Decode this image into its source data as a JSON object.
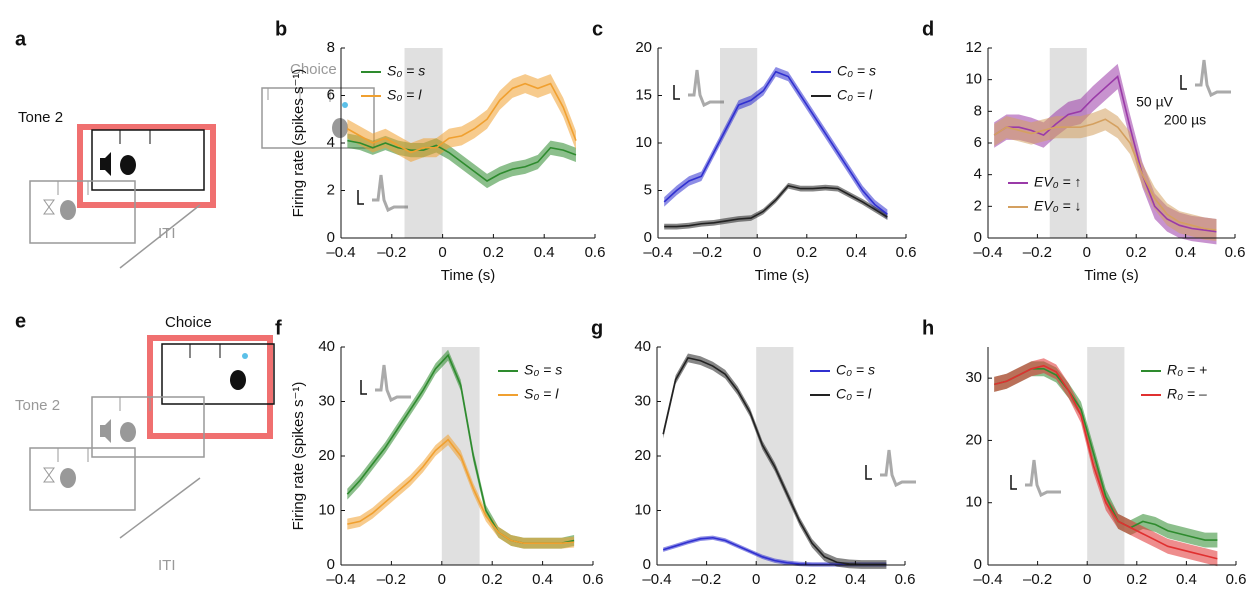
{
  "diagrams": [
    {
      "panel": "a",
      "labels": [
        "Tone 2",
        "Choice",
        "ITI"
      ]
    },
    {
      "panel": "e",
      "labels": [
        "Choice",
        "Tone 2",
        "ITI"
      ]
    }
  ],
  "chart_data": [
    {
      "type": "line",
      "panel": "b",
      "xlabel": "Time (s)",
      "ylabel": "Firing rate (spikes s⁻¹)",
      "xlim": [
        -0.4,
        0.6
      ],
      "xticks": [
        {
          "value": -0.4,
          "label": "–0.4"
        },
        {
          "value": -0.2,
          "label": "–0.2"
        },
        0,
        0.2,
        0.4,
        0.6
      ],
      "ylim": [
        0,
        8
      ],
      "yticks": [
        0,
        2,
        4,
        6,
        8
      ],
      "highlight": [
        -0.15,
        0
      ],
      "legend": "upper left",
      "x": [
        -0.375,
        -0.325,
        -0.275,
        -0.225,
        -0.175,
        -0.125,
        -0.075,
        -0.025,
        0.025,
        0.075,
        0.125,
        0.175,
        0.225,
        0.275,
        0.325,
        0.375,
        0.425,
        0.475,
        0.525
      ],
      "series": [
        {
          "name": "S₀ = s",
          "color": "#2e8b2e",
          "values": [
            4.1,
            4.0,
            3.8,
            4.0,
            3.8,
            3.7,
            3.7,
            3.9,
            3.6,
            3.2,
            2.8,
            2.4,
            2.7,
            2.9,
            3.0,
            3.2,
            3.8,
            3.7,
            3.5
          ],
          "errors": [
            0.3,
            0.3,
            0.3,
            0.3,
            0.3,
            0.3,
            0.3,
            0.3,
            0.3,
            0.3,
            0.3,
            0.3,
            0.3,
            0.3,
            0.3,
            0.3,
            0.3,
            0.3,
            0.3
          ]
        },
        {
          "name": "S₀ = l",
          "color": "#f0a030",
          "values": [
            4.6,
            4.3,
            4.0,
            4.2,
            3.9,
            3.6,
            3.8,
            3.8,
            4.2,
            4.3,
            4.6,
            5.0,
            5.8,
            6.3,
            6.5,
            6.3,
            6.5,
            5.5,
            4.1
          ],
          "errors": [
            0.4,
            0.4,
            0.4,
            0.4,
            0.4,
            0.4,
            0.4,
            0.4,
            0.4,
            0.4,
            0.4,
            0.4,
            0.4,
            0.4,
            0.4,
            0.4,
            0.4,
            0.4,
            0.4
          ]
        }
      ]
    },
    {
      "type": "line",
      "panel": "c",
      "xlabel": "Time (s)",
      "xlim": [
        -0.4,
        0.6
      ],
      "xticks": [
        {
          "value": -0.4,
          "label": "–0.4"
        },
        {
          "value": -0.2,
          "label": "–0.2"
        },
        0,
        0.2,
        0.4,
        0.6
      ],
      "ylim": [
        0,
        20
      ],
      "yticks": [
        0,
        5,
        10,
        15,
        20
      ],
      "highlight": [
        -0.15,
        0
      ],
      "legend": "upper right",
      "x": [
        -0.375,
        -0.325,
        -0.275,
        -0.225,
        -0.175,
        -0.125,
        -0.075,
        -0.025,
        0.025,
        0.075,
        0.125,
        0.175,
        0.225,
        0.275,
        0.325,
        0.375,
        0.425,
        0.475,
        0.525
      ],
      "series": [
        {
          "name": "C₀ = s",
          "color": "#3030d0",
          "values": [
            3.8,
            5.0,
            6.0,
            6.5,
            9.0,
            11.5,
            14.0,
            14.5,
            15.5,
            17.5,
            17.0,
            15.0,
            13.0,
            11.0,
            9.0,
            7.0,
            5.0,
            3.5,
            2.5
          ],
          "errors": [
            0.5,
            0.5,
            0.5,
            0.5,
            0.5,
            0.5,
            0.5,
            0.5,
            0.5,
            0.5,
            0.5,
            0.5,
            0.5,
            0.5,
            0.5,
            0.5,
            0.5,
            0.5,
            0.5
          ]
        },
        {
          "name": "C₀ = l",
          "color": "#222222",
          "values": [
            1.2,
            1.2,
            1.3,
            1.5,
            1.6,
            1.8,
            2.0,
            2.1,
            2.8,
            4.0,
            5.5,
            5.2,
            5.2,
            5.3,
            5.2,
            4.5,
            3.8,
            3.0,
            2.2
          ],
          "errors": [
            0.3,
            0.3,
            0.3,
            0.3,
            0.3,
            0.3,
            0.3,
            0.3,
            0.3,
            0.3,
            0.3,
            0.3,
            0.3,
            0.3,
            0.3,
            0.3,
            0.3,
            0.3,
            0.3
          ]
        }
      ]
    },
    {
      "type": "line",
      "panel": "d",
      "xlabel": "Time (s)",
      "scale_bar": [
        "50 µV",
        "200 µs"
      ],
      "xlim": [
        -0.4,
        0.6
      ],
      "xticks": [
        {
          "value": -0.4,
          "label": "–0.4"
        },
        {
          "value": -0.2,
          "label": "–0.2"
        },
        0,
        0.2,
        0.4,
        0.6
      ],
      "ylim": [
        0,
        12
      ],
      "yticks": [
        0,
        2,
        4,
        6,
        8,
        10,
        12
      ],
      "highlight": [
        -0.15,
        0
      ],
      "legend": "lower left",
      "x": [
        -0.375,
        -0.325,
        -0.275,
        -0.225,
        -0.175,
        -0.125,
        -0.075,
        -0.025,
        0.025,
        0.075,
        0.125,
        0.175,
        0.225,
        0.275,
        0.325,
        0.375,
        0.425,
        0.475,
        0.525
      ],
      "series": [
        {
          "name": "EV₀ = ↑",
          "color": "#9a3aa8",
          "values": [
            6.5,
            7.0,
            7.0,
            6.8,
            6.5,
            7.2,
            7.8,
            8.0,
            8.8,
            9.5,
            10.2,
            7.0,
            4.0,
            2.0,
            1.2,
            0.8,
            0.6,
            0.5,
            0.4
          ],
          "errors": [
            0.8,
            0.8,
            0.8,
            0.8,
            0.8,
            0.8,
            0.8,
            0.8,
            0.8,
            0.8,
            0.8,
            0.8,
            0.8,
            0.8,
            0.8,
            0.8,
            0.8,
            0.8,
            0.8
          ]
        },
        {
          "name": "EV₀ = ↓",
          "color": "#d4a060",
          "values": [
            6.5,
            7.0,
            6.8,
            6.6,
            6.8,
            7.0,
            7.0,
            7.0,
            7.2,
            7.5,
            7.0,
            6.0,
            4.0,
            2.5,
            1.5,
            1.0,
            0.8,
            0.6,
            0.5
          ],
          "errors": [
            0.7,
            0.7,
            0.7,
            0.7,
            0.7,
            0.7,
            0.7,
            0.7,
            0.7,
            0.7,
            0.7,
            0.7,
            0.7,
            0.7,
            0.7,
            0.7,
            0.7,
            0.7,
            0.7
          ]
        }
      ]
    },
    {
      "type": "line",
      "panel": "f",
      "xlabel": "Time (s)",
      "ylabel": "Firing rate (spikes s⁻¹)",
      "xlim": [
        -0.4,
        0.6
      ],
      "xticks": [
        {
          "value": -0.4,
          "label": "–0.4"
        },
        {
          "value": -0.2,
          "label": "–0.2"
        },
        0,
        0.2,
        0.4,
        0.6
      ],
      "ylim": [
        0,
        40
      ],
      "yticks": [
        0,
        10,
        20,
        30,
        40
      ],
      "highlight": [
        0,
        0.15
      ],
      "legend": "upper right",
      "x": [
        -0.375,
        -0.325,
        -0.275,
        -0.225,
        -0.175,
        -0.125,
        -0.075,
        -0.025,
        0.025,
        0.075,
        0.125,
        0.175,
        0.225,
        0.275,
        0.325,
        0.375,
        0.425,
        0.475,
        0.525
      ],
      "series": [
        {
          "name": "S₀ = s",
          "color": "#2e8b2e",
          "values": [
            13,
            15.5,
            18.5,
            21.5,
            25,
            28.5,
            32,
            36,
            38.5,
            33,
            20,
            10,
            6,
            4.5,
            4,
            4,
            4,
            4,
            4.5
          ],
          "errors": [
            1,
            1,
            1,
            1,
            1,
            1,
            1,
            1,
            1,
            1,
            1,
            1,
            1,
            1,
            1,
            1,
            1,
            1,
            1
          ]
        },
        {
          "name": "S₀ = l",
          "color": "#f0a030",
          "values": [
            7.5,
            8,
            9.5,
            11.5,
            13.5,
            15.5,
            18,
            21,
            23,
            20,
            14,
            9,
            6,
            4.5,
            4,
            4,
            4,
            4,
            4.2
          ],
          "errors": [
            1,
            1,
            1,
            1,
            1,
            1,
            1,
            1,
            1,
            1,
            1,
            1,
            1,
            1,
            1,
            1,
            1,
            1,
            1
          ]
        }
      ]
    },
    {
      "type": "line",
      "panel": "g",
      "xlabel": "Time (s)",
      "xlim": [
        -0.4,
        0.6
      ],
      "xticks": [
        {
          "value": -0.4,
          "label": "–0.4"
        },
        {
          "value": -0.2,
          "label": "–0.2"
        },
        0,
        0.2,
        0.4,
        0.6
      ],
      "ylim": [
        0,
        40
      ],
      "yticks": [
        0,
        10,
        20,
        30,
        40
      ],
      "highlight": [
        0,
        0.15
      ],
      "legend": "upper right",
      "x": [
        -0.375,
        -0.325,
        -0.275,
        -0.225,
        -0.175,
        -0.125,
        -0.075,
        -0.025,
        0.025,
        0.075,
        0.125,
        0.175,
        0.225,
        0.275,
        0.325,
        0.375,
        0.425,
        0.475,
        0.525
      ],
      "series": [
        {
          "name": "C₀ = s",
          "color": "#3030d0",
          "values": [
            2.8,
            3.5,
            4.2,
            4.8,
            5.0,
            4.5,
            3.5,
            2.5,
            1.5,
            0.8,
            0.4,
            0.2,
            0.1,
            0.1,
            0.1,
            0.1,
            0.1,
            0.1,
            0.1
          ],
          "errors": [
            0.4,
            0.4,
            0.4,
            0.4,
            0.4,
            0.4,
            0.4,
            0.4,
            0.4,
            0.4,
            0.4,
            0.4,
            0.4,
            0.4,
            0.4,
            0.4,
            0.4,
            0.4,
            0.4
          ]
        },
        {
          "name": "C₀ = l",
          "color": "#222222",
          "values": [
            24,
            34,
            38,
            37.5,
            36.5,
            35,
            32,
            28,
            22,
            18,
            13,
            8,
            4,
            1.5,
            0.5,
            0.2,
            0.1,
            0.1,
            0.1
          ],
          "errors": [
            0.8,
            0.8,
            0.8,
            0.8,
            0.8,
            0.8,
            0.8,
            0.8,
            0.8,
            0.8,
            0.8,
            0.8,
            0.8,
            0.8,
            0.8,
            0.8,
            0.8,
            0.8,
            0.8
          ]
        }
      ]
    },
    {
      "type": "line",
      "panel": "h",
      "xlabel": "Time (s)",
      "xlim": [
        -0.4,
        0.6
      ],
      "xticks": [
        {
          "value": -0.4,
          "label": "–0.4"
        },
        {
          "value": -0.2,
          "label": "–0.2"
        },
        0,
        0.2,
        0.4,
        0.6
      ],
      "ylim": [
        0,
        35
      ],
      "yticks": [
        0,
        10,
        20,
        30
      ],
      "highlight": [
        0,
        0.15
      ],
      "legend": "upper right",
      "x": [
        -0.375,
        -0.325,
        -0.275,
        -0.225,
        -0.175,
        -0.125,
        -0.075,
        -0.025,
        0.025,
        0.075,
        0.125,
        0.175,
        0.225,
        0.275,
        0.325,
        0.375,
        0.425,
        0.475,
        0.525
      ],
      "series": [
        {
          "name": "R₀ = +",
          "color": "#2e8b2e",
          "values": [
            29,
            29.5,
            30.5,
            31.5,
            31.5,
            30.5,
            28,
            25,
            18,
            11,
            7,
            6,
            7,
            6.5,
            5.5,
            5,
            4.5,
            4,
            4
          ],
          "errors": [
            1.2,
            1.2,
            1.2,
            1.2,
            1.2,
            1.2,
            1.2,
            1.2,
            1.2,
            1.2,
            1.2,
            1.2,
            1.2,
            1.2,
            1.2,
            1.2,
            1.2,
            1.2,
            1.2
          ]
        },
        {
          "name": "R₀ = –",
          "color": "#e03030",
          "values": [
            29,
            29.5,
            30.5,
            31.5,
            32,
            31,
            28,
            24,
            16,
            10,
            7,
            6,
            5,
            4,
            3,
            2.5,
            2,
            1.5,
            1
          ],
          "errors": [
            1.2,
            1.2,
            1.2,
            1.2,
            1.2,
            1.2,
            1.2,
            1.2,
            1.2,
            1.2,
            1.2,
            1.2,
            1.2,
            1.2,
            1.2,
            1.2,
            1.2,
            1.2,
            1.2
          ]
        }
      ]
    }
  ]
}
